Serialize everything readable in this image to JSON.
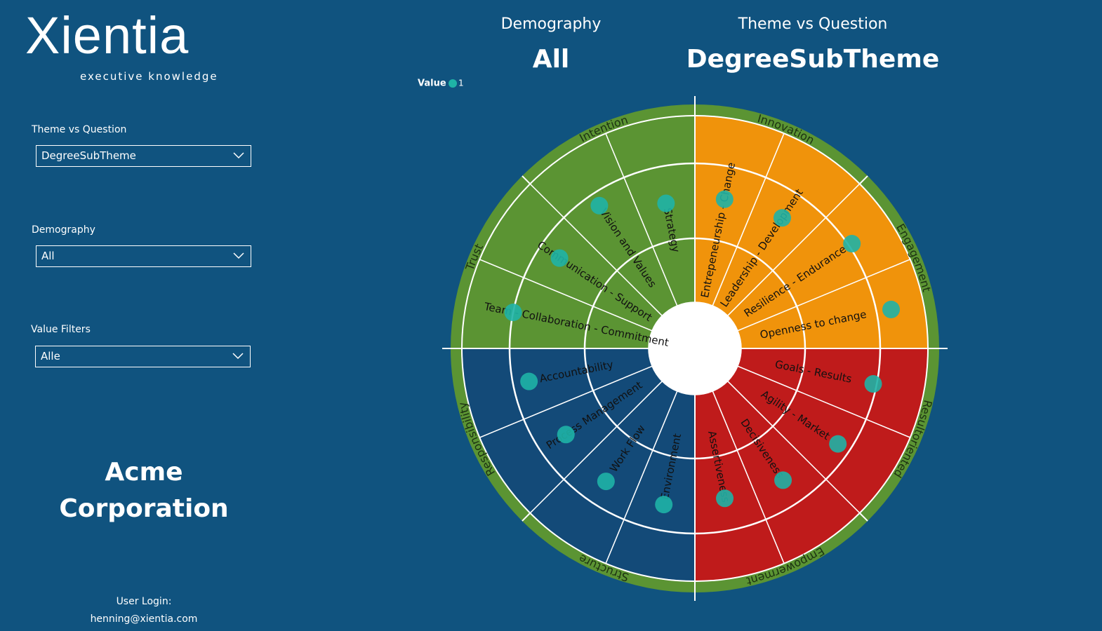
{
  "logo": {
    "name": "Xientia",
    "tagline": "executive knowledge"
  },
  "filters": [
    {
      "label": "Theme vs Question",
      "value": "DegreeSubTheme"
    },
    {
      "label": "Demography",
      "value": "All"
    },
    {
      "label": "Value Filters",
      "value": "Alle"
    }
  ],
  "company": "Acme Corporation",
  "user": {
    "label": "User Login:",
    "email": "henning@xientia.com"
  },
  "cards": [
    {
      "title": "Demography",
      "value": "All"
    },
    {
      "title": "Theme vs Question",
      "value": "DegreeSubTheme"
    }
  ],
  "legend": {
    "title": "Value",
    "items": [
      {
        "value": 1,
        "color": "#1fb3a6"
      }
    ]
  },
  "wheel": {
    "themes": [
      {
        "name": "Innovation",
        "color": "#f0930b"
      },
      {
        "name": "Engagement",
        "color": "#f0930b"
      },
      {
        "name": "Resultoriented",
        "color": "#bf1b1b"
      },
      {
        "name": "Empowerment",
        "color": "#bf1b1b"
      },
      {
        "name": "Structure",
        "color": "#134a78"
      },
      {
        "name": "Responsibility",
        "color": "#134a78"
      },
      {
        "name": "Trust",
        "color": "#5b9433"
      },
      {
        "name": "Intention",
        "color": "#5b9433"
      }
    ],
    "subthemes": [
      {
        "name": "Entrepeneurship - Change",
        "value": 1
      },
      {
        "name": "Leadership - Development",
        "value": 1
      },
      {
        "name": "Resilience - Endurance",
        "value": 1
      },
      {
        "name": "Openness to change",
        "value": 1
      },
      {
        "name": "Goals - Results",
        "value": 1
      },
      {
        "name": "Agility - Market",
        "value": 1
      },
      {
        "name": "Decisiveness",
        "value": 1
      },
      {
        "name": "Assertiveness",
        "value": 1
      },
      {
        "name": "Environment",
        "value": 1
      },
      {
        "name": "Work Flow",
        "value": 1
      },
      {
        "name": "Process Management",
        "value": 1
      },
      {
        "name": "Accountability",
        "value": 1
      },
      {
        "name": "Team - Collaboration - Commitment",
        "value": 1
      },
      {
        "name": "Communication - Support",
        "value": 1
      },
      {
        "name": "Vision and Values",
        "value": 1
      },
      {
        "name": "Strategy",
        "value": 1
      }
    ]
  }
}
